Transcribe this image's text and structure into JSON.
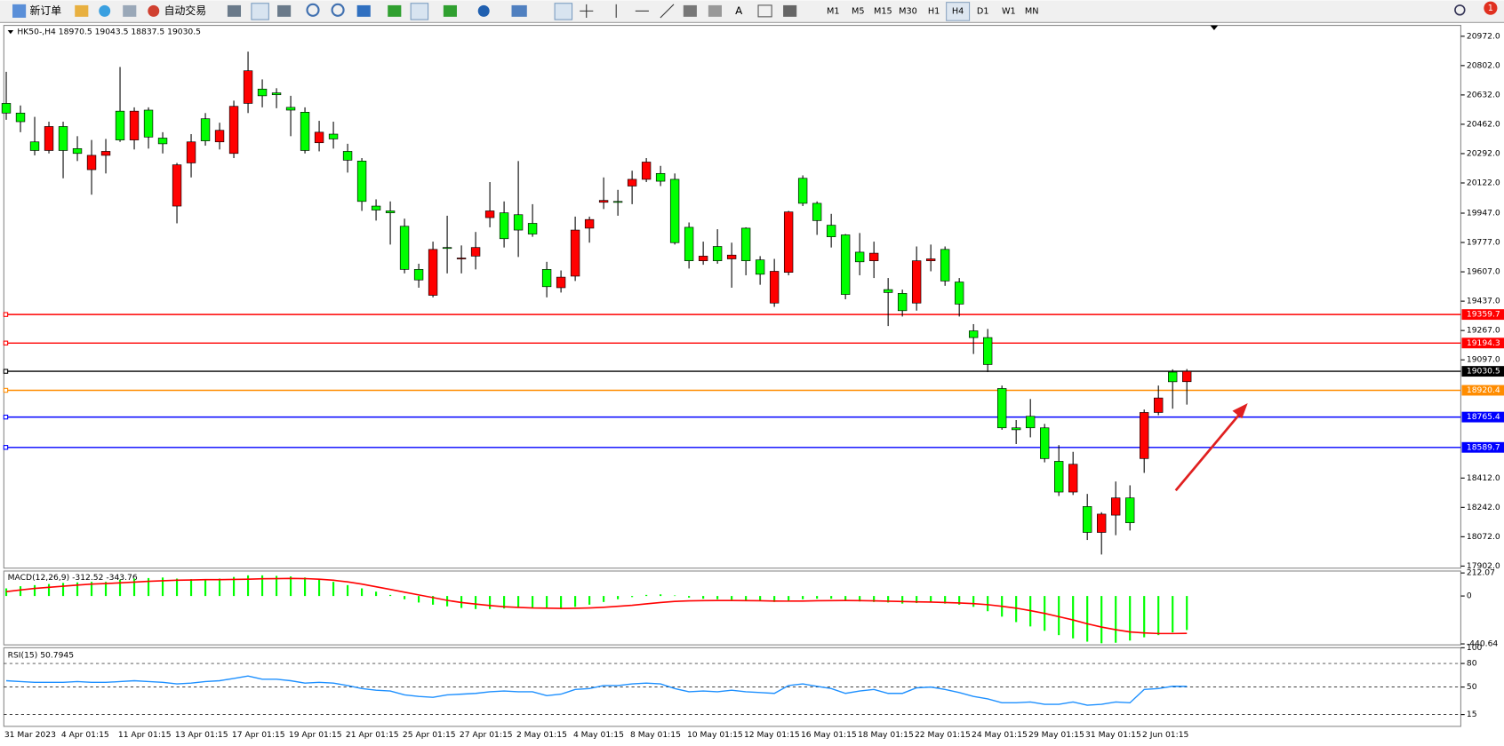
{
  "toolbar": {
    "new_order": "新订单",
    "auto_trading": "自动交易",
    "timeframes": [
      "M1",
      "M5",
      "M15",
      "M30",
      "H1",
      "H4",
      "D1",
      "W1",
      "MN"
    ],
    "active_timeframe": "H4",
    "notifications": "1"
  },
  "chart_data": [
    {
      "type": "candlestick",
      "title": "HK50-,H4  18970.5 19043.5 18837.5 19030.5",
      "categories": [
        "31 Mar 2023",
        null,
        null,
        null,
        "4 Apr 01:15",
        null,
        null,
        null,
        "11 Apr 01:15",
        null,
        null,
        null,
        "13 Apr 01:15",
        null,
        null,
        null,
        "17 Apr 01:15",
        null,
        null,
        null,
        "19 Apr 01:15",
        null,
        null,
        null,
        "21 Apr 01:15",
        null,
        null,
        null,
        "25 Apr 01:15",
        null,
        null,
        null,
        "27 Apr 01:15",
        null,
        null,
        null,
        "2 May 01:15",
        null,
        null,
        null,
        "4 May 01:15",
        null,
        null,
        null,
        "8 May 01:15",
        null,
        null,
        null,
        "10 May 01:15",
        null,
        null,
        null,
        "12 May 01:15",
        null,
        null,
        null,
        "16 May 01:15",
        null,
        null,
        null,
        "18 May 01:15",
        null,
        null,
        null,
        "22 May 01:15",
        null,
        null,
        null,
        "24 May 01:15",
        null,
        null,
        null,
        "29 May 01:15",
        null,
        null,
        null,
        "31 May 01:15",
        null,
        null,
        null,
        "2 Jun 01:15",
        null,
        null,
        null
      ],
      "open": [
        20583,
        20527,
        20360,
        20310,
        20449,
        20321,
        20199,
        20282,
        20538,
        20371,
        20544,
        20382,
        19988,
        20238,
        20494,
        20360,
        20293,
        20583,
        20666,
        20644,
        20560,
        20532,
        20355,
        20405,
        20305,
        20249,
        19988,
        19960,
        19871,
        19621,
        19471,
        19748,
        19682,
        19698,
        19921,
        19949,
        19938,
        19888,
        19621,
        19515,
        19582,
        19860,
        20010,
        20015,
        20104,
        20143,
        20177,
        20143,
        19865,
        19671,
        19754,
        19682,
        19860,
        19676,
        19426,
        19604,
        20149,
        20004,
        19877,
        19821,
        19721,
        19671,
        19504,
        19482,
        19426,
        19671,
        19737,
        19548,
        19265,
        19226,
        18931,
        18703,
        18770,
        18703,
        18509,
        18331,
        18247,
        18097,
        18197,
        18297,
        18525,
        18792,
        19026,
        18970.5
      ],
      "high": [
        20766,
        20571,
        20505,
        20477,
        20477,
        20393,
        20371,
        20377,
        20794,
        20560,
        20560,
        20416,
        20238,
        20405,
        20527,
        20471,
        20599,
        20883,
        20722,
        20671,
        20627,
        20560,
        20482,
        20477,
        20349,
        20266,
        20027,
        20015,
        19915,
        19654,
        19782,
        19932,
        19760,
        19838,
        20127,
        20015,
        20249,
        19999,
        19665,
        19615,
        19927,
        19927,
        20154,
        20082,
        20193,
        20266,
        20221,
        20177,
        19893,
        19782,
        19854,
        19776,
        19865,
        19698,
        19682,
        19960,
        20166,
        20015,
        19943,
        19826,
        19832,
        19782,
        19571,
        19504,
        19754,
        19765,
        19754,
        19571,
        19304,
        19276,
        18948,
        18748,
        18870,
        18726,
        18603,
        18564,
        18320,
        18214,
        18392,
        18370,
        18809,
        18948,
        19042,
        19043.5
      ],
      "low": [
        20488,
        20416,
        20282,
        20293,
        20149,
        20249,
        20054,
        20177,
        20360,
        20316,
        20321,
        20293,
        19888,
        20154,
        20338,
        20316,
        20266,
        20527,
        20560,
        20555,
        20393,
        20293,
        20305,
        20321,
        20182,
        19960,
        19904,
        19765,
        19598,
        19515,
        19459,
        19598,
        19598,
        19621,
        19865,
        19748,
        19693,
        19810,
        19459,
        19487,
        19554,
        19776,
        19971,
        19932,
        19999,
        20127,
        20104,
        19765,
        19626,
        19648,
        19654,
        19515,
        19587,
        19532,
        19404,
        19587,
        19988,
        19821,
        19748,
        19448,
        19587,
        19571,
        19293,
        19348,
        19382,
        19610,
        19526,
        19348,
        19131,
        19026,
        18692,
        18609,
        18648,
        18503,
        18308,
        18314,
        18053,
        17969,
        18081,
        18108,
        18442,
        18776,
        18814,
        18837.5
      ],
      "close": [
        20527,
        20477,
        20310,
        20449,
        20310,
        20293,
        20282,
        20305,
        20371,
        20538,
        20388,
        20349,
        20227,
        20360,
        20366,
        20427,
        20566,
        20772,
        20627,
        20633,
        20544,
        20310,
        20416,
        20377,
        20254,
        20015,
        19965,
        19949,
        19621,
        19560,
        19737,
        19743,
        19687,
        19748,
        19960,
        19799,
        19849,
        19826,
        19521,
        19576,
        19849,
        19910,
        20021,
        20010,
        20143,
        20243,
        20132,
        19776,
        19671,
        19698,
        19671,
        19704,
        19671,
        19593,
        19610,
        19954,
        20004,
        19904,
        19810,
        19476,
        19665,
        19715,
        19487,
        19382,
        19671,
        19682,
        19554,
        19420,
        19226,
        19070,
        18703,
        18692,
        18703,
        18525,
        18331,
        18492,
        18097,
        18203,
        18297,
        18153,
        18792,
        18876,
        18970,
        19030.5
      ],
      "up_color": "#ff0000",
      "down_color": "#00ff00",
      "ylim": [
        17890,
        21035
      ],
      "yticks": [
        {
          "value": 20972,
          "label": "20972.0"
        },
        {
          "value": 20802,
          "label": "20802.0"
        },
        {
          "value": 20632,
          "label": "20632.0"
        },
        {
          "value": 20462,
          "label": "20462.0"
        },
        {
          "value": 20292,
          "label": "20292.0"
        },
        {
          "value": 20122,
          "label": "20122.0"
        },
        {
          "value": 19947,
          "label": "19947.0"
        },
        {
          "value": 19777,
          "label": "19777.0"
        },
        {
          "value": 19607,
          "label": "19607.0"
        },
        {
          "value": 19437,
          "label": "19437.0"
        },
        {
          "value": 19267,
          "label": "19267.0"
        },
        {
          "value": 19097,
          "label": "19097.0"
        },
        {
          "value": 18412,
          "label": "18412.0"
        },
        {
          "value": 18242,
          "label": "18242.0"
        },
        {
          "value": 18072,
          "label": "18072.0"
        },
        {
          "value": 17902,
          "label": "17902.0"
        }
      ],
      "levels": [
        {
          "value": 19359.7,
          "color": "#ff0000"
        },
        {
          "value": 19194.3,
          "color": "#ff0000"
        },
        {
          "value": 19030.5,
          "color": "#000000"
        },
        {
          "value": 18920.4,
          "color": "#ff8c00"
        },
        {
          "value": 18765.4,
          "color": "#0000ff"
        },
        {
          "value": 18589.7,
          "color": "#0000ff"
        }
      ]
    },
    {
      "type": "macd",
      "title": "MACD(12,26,9) -312.52 -343.76",
      "series": [
        {
          "color": "#00ff00",
          "values": [
            70,
            90,
            100,
            110,
            120,
            125,
            130,
            130,
            150,
            160,
            165,
            170,
            160,
            155,
            150,
            160,
            175,
            190,
            190,
            185,
            180,
            170,
            150,
            130,
            100,
            70,
            40,
            10,
            -30,
            -60,
            -80,
            -95,
            -110,
            -120,
            -120,
            -115,
            -110,
            -105,
            -115,
            -120,
            -100,
            -80,
            -55,
            -30,
            -10,
            10,
            15,
            5,
            -15,
            -25,
            -30,
            -35,
            -40,
            -45,
            -55,
            -50,
            -30,
            -25,
            -25,
            -40,
            -50,
            -55,
            -60,
            -70,
            -65,
            -60,
            -70,
            -80,
            -100,
            -140,
            -190,
            -240,
            -280,
            -320,
            -360,
            -390,
            -420,
            -435,
            -430,
            -410,
            -380,
            -360,
            -335,
            -312.52
          ]
        },
        {
          "color": "#ff0000",
          "values": [
            40,
            55,
            70,
            80,
            90,
            100,
            110,
            115,
            120,
            128,
            135,
            140,
            145,
            148,
            150,
            150,
            152,
            155,
            158,
            160,
            162,
            160,
            155,
            145,
            130,
            110,
            85,
            60,
            35,
            10,
            -15,
            -40,
            -60,
            -75,
            -88,
            -98,
            -105,
            -110,
            -112,
            -114,
            -113,
            -110,
            -104,
            -95,
            -85,
            -72,
            -60,
            -50,
            -45,
            -43,
            -42,
            -42,
            -43,
            -44,
            -46,
            -47,
            -46,
            -44,
            -43,
            -42,
            -43,
            -45,
            -48,
            -51,
            -54,
            -56,
            -60,
            -64,
            -70,
            -80,
            -95,
            -112,
            -135,
            -160,
            -190,
            -220,
            -255,
            -285,
            -310,
            -330,
            -340,
            -345,
            -345,
            -343.76
          ]
        }
      ],
      "ylim": [
        -440.64,
        212.07
      ],
      "yticks": [
        212.07,
        0,
        -440.64
      ]
    },
    {
      "type": "rsi",
      "title": "RSI(15) 50.7945",
      "color": "#1e90ff",
      "values": [
        58,
        57,
        56,
        56,
        56,
        57,
        56,
        56,
        57,
        58,
        57,
        56,
        54,
        55,
        57,
        58,
        61,
        64,
        60,
        60,
        58,
        55,
        56,
        55,
        52,
        48,
        46,
        45,
        40,
        38,
        37,
        40,
        41,
        42,
        44,
        45,
        44,
        44,
        39,
        41,
        47,
        48,
        52,
        52,
        54,
        55,
        54,
        48,
        44,
        45,
        44,
        46,
        44,
        43,
        42,
        52,
        54,
        51,
        48,
        42,
        45,
        47,
        42,
        42,
        49,
        50,
        47,
        43,
        38,
        35,
        30,
        30,
        31,
        28,
        28,
        31,
        27,
        28,
        31,
        30,
        47,
        48,
        51,
        50.7945
      ],
      "ylim": [
        0,
        100
      ],
      "yticks": [
        100,
        80,
        50,
        15
      ]
    }
  ]
}
